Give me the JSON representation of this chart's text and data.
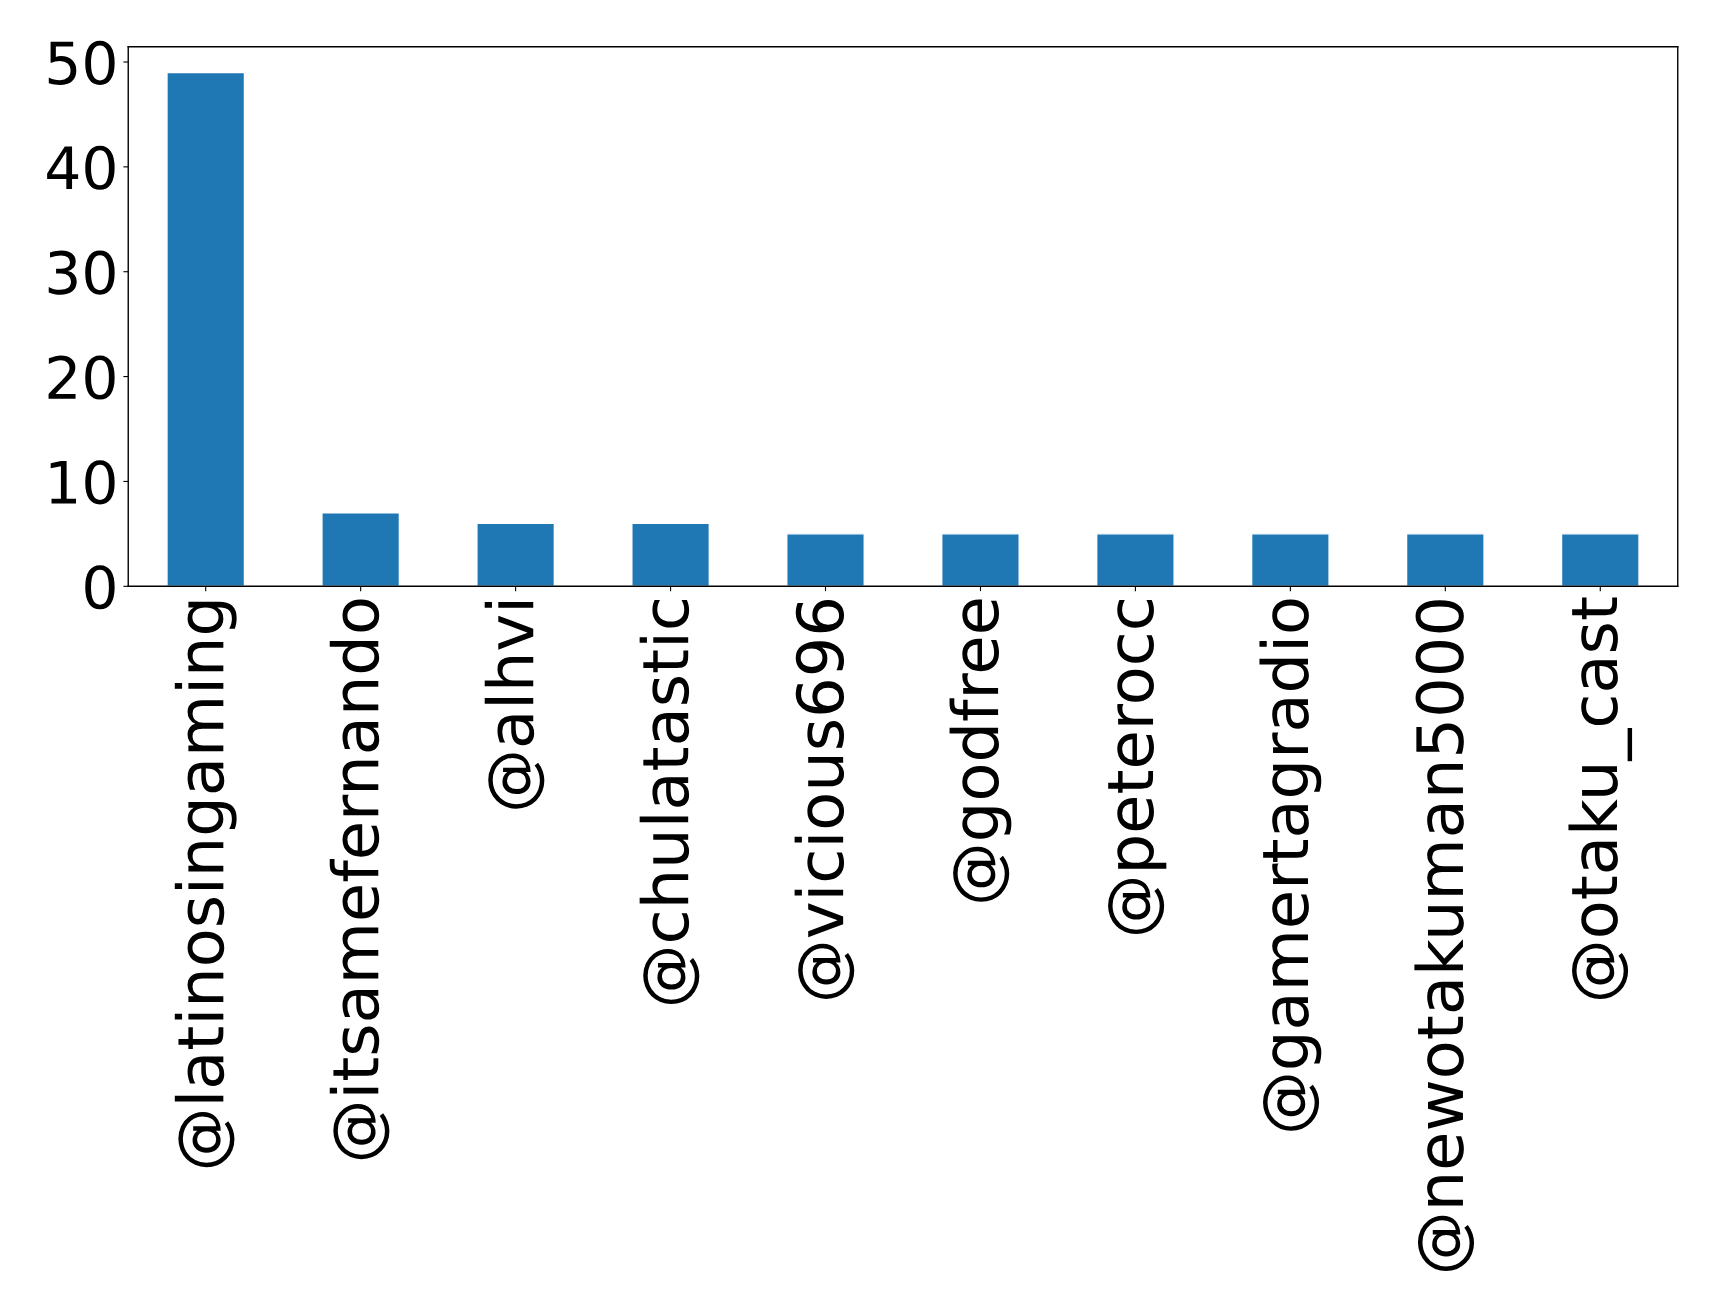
{
  "chart_data": {
    "type": "bar",
    "categories": [
      "@latinosingaming",
      "@itsamefernando",
      "@alhvi",
      "@chulatastic",
      "@vicious696",
      "@godfree",
      "@peterocc",
      "@gamertagradio",
      "@newotakuman5000",
      "@otaku_cast"
    ],
    "values": [
      49,
      7,
      6,
      6,
      5,
      5,
      5,
      5,
      5,
      5
    ],
    "color": "#1f77b4",
    "ylim": [
      0,
      51.45
    ],
    "yticks": [
      0,
      10,
      20,
      30,
      40,
      50
    ],
    "grid": false
  }
}
